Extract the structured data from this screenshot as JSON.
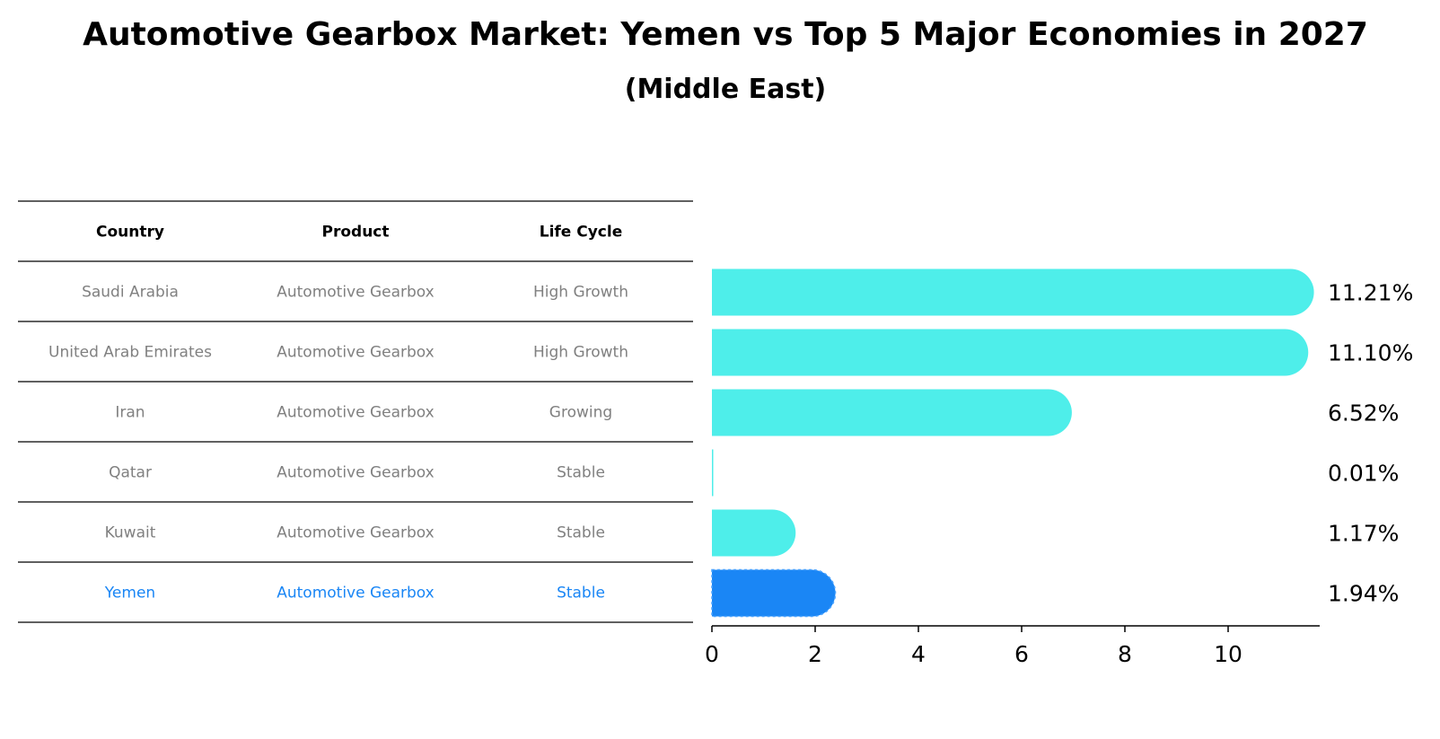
{
  "chart_data": {
    "type": "bar",
    "orientation": "horizontal",
    "title": "Automotive Gearbox Market: Yemen vs Top 5 Major Economies in 2027",
    "subtitle": "(Middle East)",
    "table": {
      "columns": [
        "Country",
        "Product",
        "Life Cycle"
      ],
      "rows": [
        [
          "Saudi Arabia",
          "Automotive Gearbox",
          "High Growth"
        ],
        [
          "United Arab Emirates",
          "Automotive Gearbox",
          "High Growth"
        ],
        [
          "Iran",
          "Automotive Gearbox",
          "Growing"
        ],
        [
          "Qatar",
          "Automotive Gearbox",
          "Stable"
        ],
        [
          "Kuwait",
          "Automotive Gearbox",
          "Stable"
        ],
        [
          "Yemen",
          "Automotive Gearbox",
          "Stable"
        ]
      ]
    },
    "categories": [
      "Saudi Arabia",
      "United Arab Emirates",
      "Iran",
      "Qatar",
      "Kuwait",
      "Yemen"
    ],
    "values": [
      11.21,
      11.1,
      6.52,
      0.01,
      1.17,
      1.94
    ],
    "value_labels": [
      "11.21%",
      "11.10%",
      "6.52%",
      "0.01%",
      "1.17%",
      "1.94%"
    ],
    "highlight": "Yemen",
    "xlim": [
      0,
      11.8
    ],
    "xticks": [
      0,
      2,
      4,
      6,
      8,
      10
    ],
    "xtick_labels": [
      "0",
      "2",
      "4",
      "6",
      "8",
      "10"
    ],
    "xlabel": "",
    "ylabel": "",
    "colors": {
      "bar": "#4EEEEA",
      "highlight_bar": "#1A86F5",
      "highlight_text": "#1A86F5",
      "table_text": "#808080",
      "header_text": "#000000",
      "rule": "#000000"
    }
  }
}
